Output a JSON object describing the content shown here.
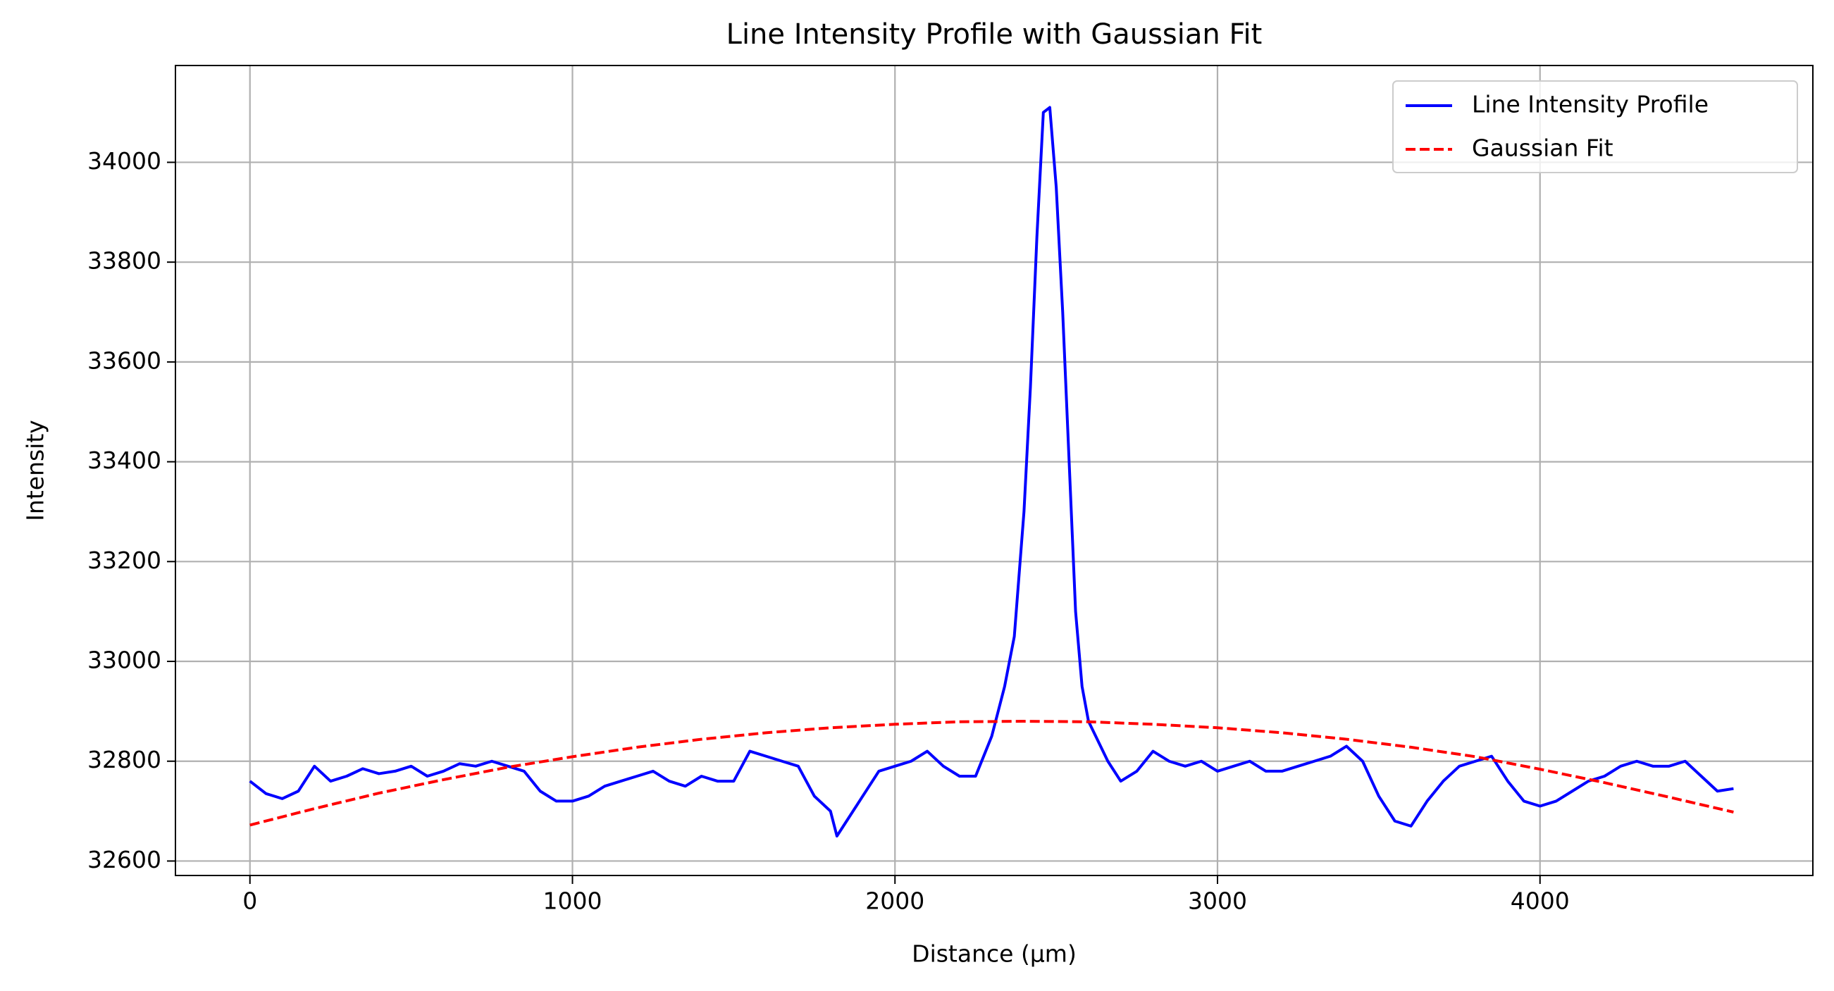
{
  "chart_data": {
    "type": "line",
    "title": "Line Intensity Profile with Gaussian Fit",
    "x_label": "Distance (µm)",
    "y_label": "Intensity",
    "xlim": [
      -231,
      4846
    ],
    "ylim": [
      32571,
      34194
    ],
    "xticks": [
      0,
      1000,
      2000,
      3000,
      4000
    ],
    "yticks": [
      32600,
      32800,
      33000,
      33200,
      33400,
      33600,
      33800,
      34000
    ],
    "grid": true,
    "legend": "upper right",
    "series": [
      {
        "name": "Line Intensity Profile",
        "color": "#0000ff",
        "linestyle": "solid",
        "x": [
          0,
          50,
          100,
          150,
          200,
          250,
          300,
          350,
          400,
          450,
          500,
          550,
          600,
          650,
          700,
          750,
          800,
          850,
          900,
          950,
          1000,
          1050,
          1100,
          1150,
          1200,
          1250,
          1300,
          1350,
          1400,
          1450,
          1500,
          1550,
          1600,
          1650,
          1700,
          1750,
          1800,
          1820,
          1850,
          1900,
          1950,
          2000,
          2050,
          2100,
          2150,
          2200,
          2250,
          2300,
          2340,
          2370,
          2400,
          2420,
          2440,
          2460,
          2480,
          2500,
          2520,
          2540,
          2560,
          2580,
          2600,
          2630,
          2660,
          2700,
          2750,
          2800,
          2850,
          2900,
          2950,
          3000,
          3050,
          3100,
          3150,
          3200,
          3250,
          3300,
          3350,
          3400,
          3450,
          3500,
          3550,
          3600,
          3650,
          3700,
          3750,
          3800,
          3850,
          3900,
          3950,
          4000,
          4050,
          4100,
          4150,
          4200,
          4250,
          4300,
          4350,
          4400,
          4450,
          4500,
          4550,
          4600
        ],
        "values": [
          32760,
          32735,
          32725,
          32740,
          32790,
          32760,
          32770,
          32785,
          32775,
          32780,
          32790,
          32770,
          32780,
          32795,
          32790,
          32800,
          32790,
          32780,
          32740,
          32720,
          32720,
          32730,
          32750,
          32760,
          32770,
          32780,
          32760,
          32750,
          32770,
          32760,
          32760,
          32820,
          32810,
          32800,
          32790,
          32730,
          32700,
          32650,
          32680,
          32730,
          32780,
          32790,
          32800,
          32820,
          32790,
          32770,
          32770,
          32850,
          32950,
          33050,
          33300,
          33550,
          33850,
          34100,
          34110,
          33950,
          33700,
          33400,
          33100,
          32950,
          32880,
          32840,
          32800,
          32760,
          32780,
          32820,
          32800,
          32790,
          32800,
          32780,
          32790,
          32800,
          32780,
          32780,
          32790,
          32800,
          32810,
          32830,
          32800,
          32730,
          32680,
          32670,
          32720,
          32760,
          32790,
          32800,
          32810,
          32760,
          32720,
          32710,
          32720,
          32740,
          32760,
          32770,
          32790,
          32800,
          32790,
          32790,
          32800,
          32770,
          32740,
          32745
        ]
      },
      {
        "name": "Gaussian Fit",
        "color": "#ff0000",
        "linestyle": "dashed",
        "x": [
          0,
          200,
          400,
          600,
          800,
          1000,
          1200,
          1400,
          1600,
          1800,
          2000,
          2200,
          2400,
          2600,
          2800,
          3000,
          3200,
          3400,
          3600,
          3800,
          4000,
          4200,
          4400,
          4600
        ],
        "values": [
          32672,
          32705,
          32736,
          32763,
          32788,
          32809,
          32828,
          32844,
          32857,
          32867,
          32874,
          32879,
          32880,
          32879,
          32874,
          32867,
          32857,
          32844,
          32828,
          32809,
          32784,
          32757,
          32728,
          32698
        ]
      }
    ]
  }
}
